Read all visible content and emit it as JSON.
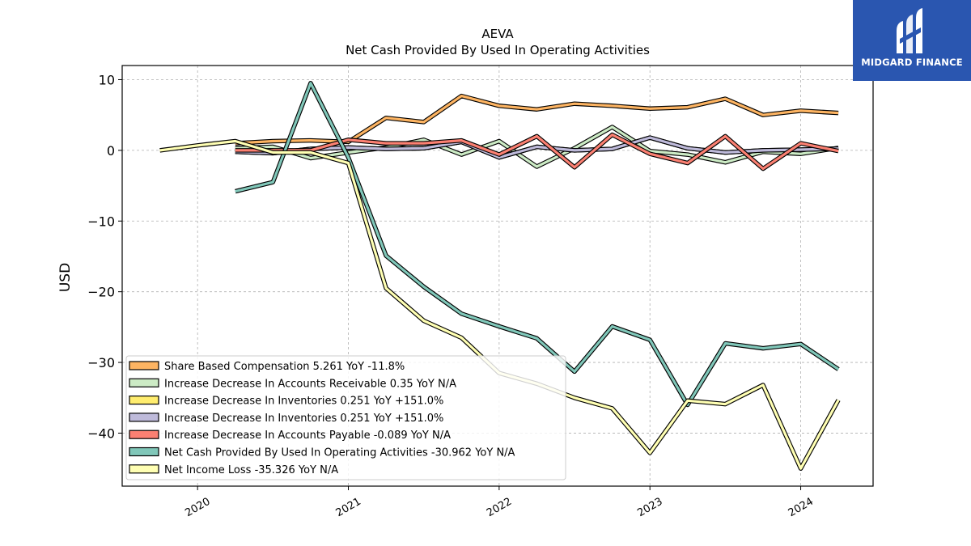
{
  "brand": {
    "name": "MIDGARD FINANCE",
    "color": "#2a56b0"
  },
  "chart_data": {
    "type": "line",
    "title": "AEVA",
    "subtitle": "Net Cash Provided By Used In Operating Activities",
    "ylabel": "USD",
    "xlabel": "",
    "ylim": [
      -47.5,
      12
    ],
    "xlim": [
      2019.5,
      2024.48
    ],
    "yticks": [
      10,
      0,
      -10,
      -20,
      -30,
      -40
    ],
    "ytick_labels": [
      "10",
      "0",
      "−10",
      "−20",
      "−30",
      "−40"
    ],
    "xticks": [
      2020,
      2021,
      2022,
      2023,
      2024
    ],
    "xtick_labels": [
      "2020",
      "2021",
      "2022",
      "2023",
      "2024"
    ],
    "grid": true,
    "legend_position": "lower-left",
    "series": [
      {
        "name": "Share Based Compensation  5.261 YoY -11.8%",
        "color": "#fdb462",
        "x": [
          2020.25,
          2020.5,
          2020.75,
          2021.0,
          2021.25,
          2021.5,
          2021.75,
          2022.0,
          2022.25,
          2022.5,
          2022.75,
          2023.0,
          2023.25,
          2023.5,
          2023.75,
          2024.0,
          2024.25
        ],
        "y": [
          1.0,
          1.3,
          1.4,
          1.2,
          4.6,
          4.0,
          7.7,
          6.3,
          5.8,
          6.6,
          6.3,
          5.9,
          6.1,
          7.3,
          5.0,
          5.6,
          5.3
        ]
      },
      {
        "name": "Increase Decrease In Accounts Receivable  0.35 YoY N/A",
        "color": "#ccebc5",
        "x": [
          2020.25,
          2020.5,
          2020.75,
          2021.0,
          2021.25,
          2021.5,
          2021.75,
          2022.0,
          2022.25,
          2022.5,
          2022.75,
          2023.0,
          2023.25,
          2023.5,
          2023.75,
          2024.0,
          2024.25
        ],
        "y": [
          0.3,
          0.5,
          -1.1,
          -0.3,
          0.4,
          1.5,
          -0.6,
          1.3,
          -2.3,
          0.3,
          3.3,
          -0.1,
          -0.6,
          -1.7,
          -0.2,
          -0.5,
          0.35
        ]
      },
      {
        "name": "Increase Decrease In Inventories  0.251 YoY +151.0%",
        "color": "#ffed6f",
        "x": [
          2020.25,
          2020.5,
          2020.75,
          2021.0,
          2021.25,
          2021.5,
          2021.75,
          2022.0,
          2022.25,
          2022.5,
          2022.75,
          2023.0,
          2023.25,
          2023.5,
          2023.75,
          2024.0,
          2024.25
        ],
        "y": [
          -0.2,
          -0.4,
          0.2,
          0.4,
          0.2,
          0.3,
          1.2,
          -1.0,
          0.5,
          0.0,
          0.2,
          1.8,
          0.3,
          -0.3,
          0.0,
          0.1,
          0.251
        ]
      },
      {
        "name": "Increase Decrease In Inventories  0.251 YoY +151.0%",
        "color": "#bebada",
        "x": [
          2020.25,
          2020.5,
          2020.75,
          2021.0,
          2021.25,
          2021.5,
          2021.75,
          2022.0,
          2022.25,
          2022.5,
          2022.75,
          2023.0,
          2023.25,
          2023.5,
          2023.75,
          2024.0,
          2024.25
        ],
        "y": [
          -0.2,
          -0.4,
          0.2,
          0.4,
          0.2,
          0.3,
          1.2,
          -1.0,
          0.5,
          0.0,
          0.2,
          1.8,
          0.3,
          -0.3,
          0.0,
          0.1,
          0.251
        ]
      },
      {
        "name": "Increase Decrease In Accounts Payable  -0.089 YoY N/A",
        "color": "#fb8072",
        "x": [
          2020.25,
          2020.5,
          2020.75,
          2021.0,
          2021.25,
          2021.5,
          2021.75,
          2022.0,
          2022.25,
          2022.5,
          2022.75,
          2023.0,
          2023.25,
          2023.5,
          2023.75,
          2024.0,
          2024.25
        ],
        "y": [
          0.0,
          0.0,
          0.0,
          1.5,
          1.0,
          1.0,
          1.4,
          -0.6,
          2.0,
          -2.4,
          2.2,
          -0.5,
          -1.8,
          2.0,
          -2.6,
          1.0,
          -0.089
        ]
      },
      {
        "name": "Net Cash Provided By Used In Operating Activities  -30.962 YoY N/A",
        "color": "#80c7b9",
        "x": [
          2020.25,
          2020.5,
          2020.75,
          2021.0,
          2021.25,
          2021.5,
          2021.75,
          2022.0,
          2022.25,
          2022.5,
          2022.75,
          2023.0,
          2023.25,
          2023.5,
          2023.75,
          2024.0,
          2024.25
        ],
        "y": [
          -5.8,
          -4.5,
          9.5,
          -1.0,
          -14.9,
          -19.3,
          -23.1,
          -24.9,
          -26.6,
          -31.3,
          -24.9,
          -26.8,
          -36.0,
          -27.3,
          -28.0,
          -27.4,
          -30.962
        ]
      },
      {
        "name": "Net Income Loss  -35.326 YoY N/A",
        "color": "#ffffb3",
        "x": [
          2019.75,
          2020.0,
          2020.25,
          2020.5,
          2020.75,
          2021.0,
          2021.25,
          2021.5,
          2021.75,
          2022.0,
          2022.25,
          2022.5,
          2022.75,
          2023.0,
          2023.25,
          2023.5,
          2023.75,
          2024.0,
          2024.25
        ],
        "y": [
          0.0,
          0.7,
          1.3,
          -0.3,
          -0.3,
          -1.8,
          -19.5,
          -24.1,
          -26.5,
          -31.5,
          -33.0,
          -35.0,
          -36.5,
          -42.8,
          -35.4,
          -35.9,
          -33.2,
          -45.0,
          -35.326
        ]
      }
    ]
  }
}
